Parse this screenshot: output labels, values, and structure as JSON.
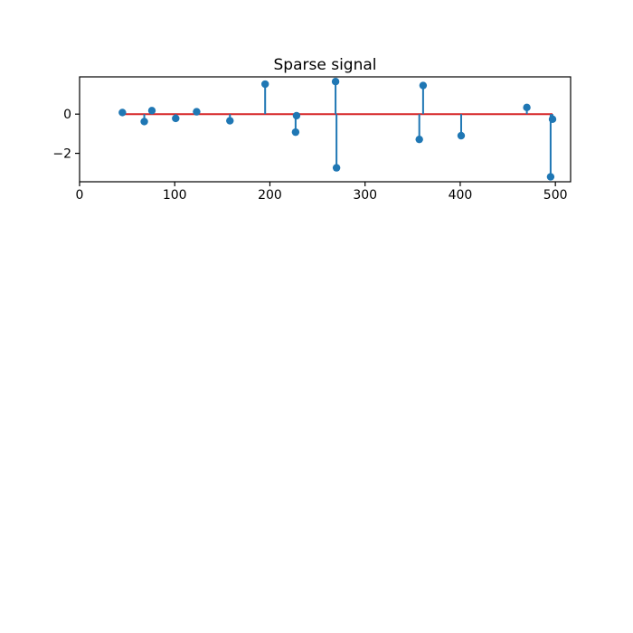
{
  "figure": {
    "background": "#ffffff"
  },
  "chart_data": {
    "type": "stem",
    "title": "Sparse signal",
    "x": [
      45,
      68,
      76,
      101,
      123,
      158,
      195,
      227,
      228,
      269,
      270,
      357,
      361,
      401,
      470,
      495,
      497
    ],
    "y": [
      0.08,
      -0.38,
      0.18,
      -0.22,
      0.12,
      -0.34,
      1.53,
      -0.92,
      -0.08,
      1.66,
      -2.74,
      -1.29,
      1.46,
      -1.1,
      0.34,
      -3.2,
      -0.26
    ],
    "baseline_y": 0,
    "xlim": [
      0,
      516
    ],
    "ylim": [
      -3.45,
      1.9
    ],
    "xticks": [
      0,
      100,
      200,
      300,
      400,
      500
    ],
    "xtick_labels": [
      "0",
      "100",
      "200",
      "300",
      "400",
      "500"
    ],
    "yticks": [
      0,
      -2
    ],
    "ytick_labels": [
      "0",
      "−2"
    ],
    "grid": false,
    "legend": null,
    "colors": {
      "stem": "#1f77b4",
      "marker": "#1f77b4",
      "baseline": "#d62728",
      "axis": "#000000"
    }
  }
}
